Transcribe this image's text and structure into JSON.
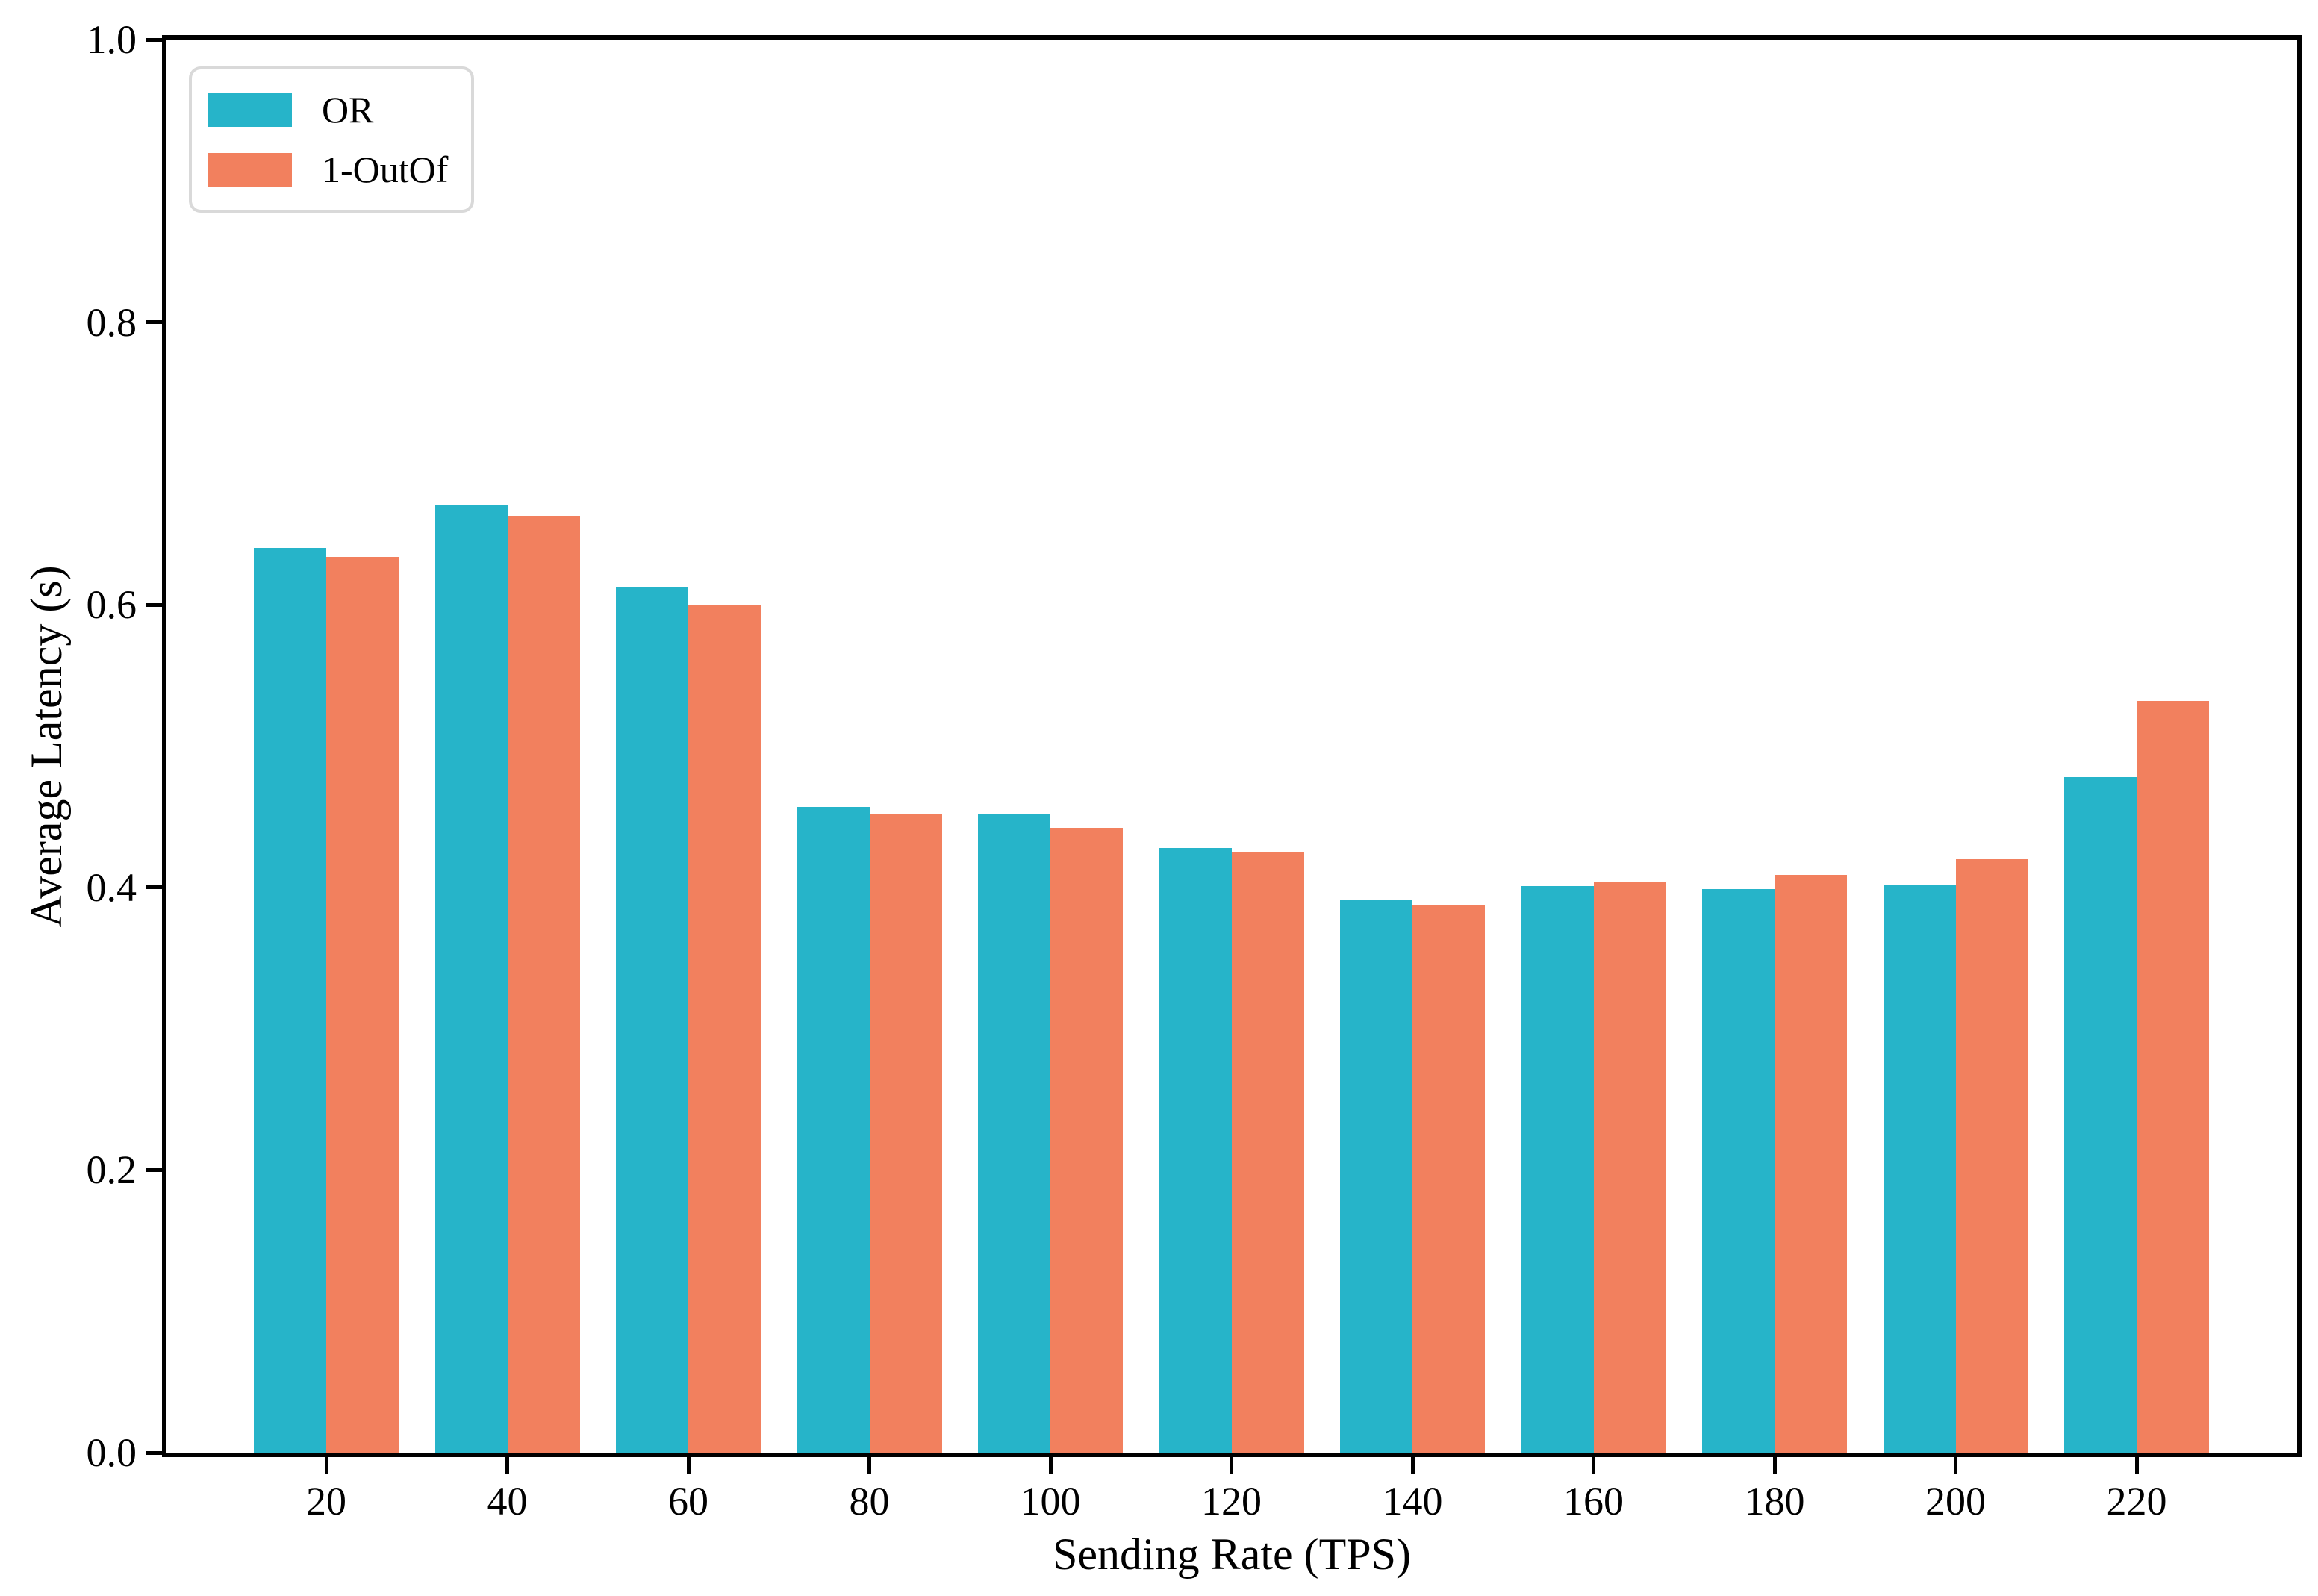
{
  "chart_data": {
    "type": "bar",
    "title": "",
    "xlabel": "Sending Rate (TPS)",
    "ylabel": "Average Latency (s)",
    "categories": [
      "20",
      "40",
      "60",
      "80",
      "100",
      "120",
      "140",
      "160",
      "180",
      "200",
      "220"
    ],
    "series": [
      {
        "name": "OR",
        "color": "#26b4c9",
        "values": [
          0.64,
          0.671,
          0.612,
          0.457,
          0.452,
          0.428,
          0.391,
          0.401,
          0.399,
          0.402,
          0.478
        ]
      },
      {
        "name": "1-OutOf",
        "color": "#f2805e",
        "values": [
          0.634,
          0.663,
          0.6,
          0.452,
          0.442,
          0.425,
          0.388,
          0.404,
          0.409,
          0.42,
          0.532
        ]
      }
    ],
    "ylim": [
      0.0,
      1.0
    ],
    "yticks": [
      0.0,
      0.2,
      0.4,
      0.6,
      0.8,
      1.0
    ],
    "grid": false,
    "legend_position": "upper left",
    "colors": {
      "axis": "#000000",
      "legend_border": "#d9d9d9",
      "background": "#ffffff"
    }
  }
}
